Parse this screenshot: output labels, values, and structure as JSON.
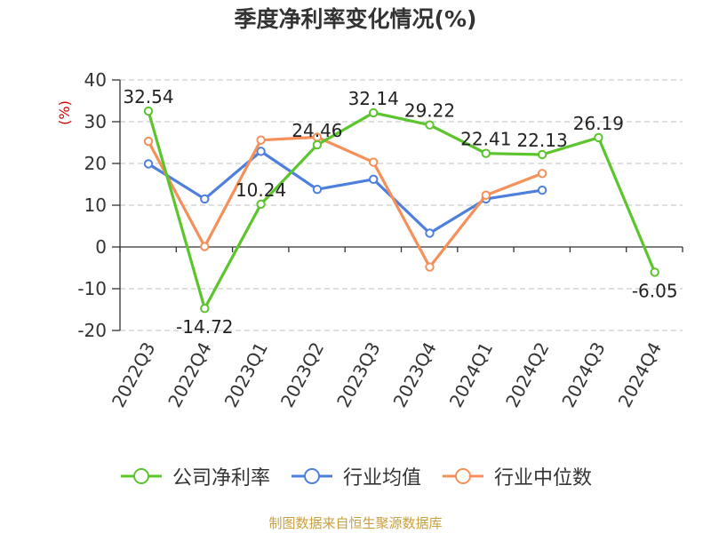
{
  "chart_data": {
    "type": "line",
    "title": "季度净利率变化情况(%)",
    "ylabel": "(%)",
    "categories": [
      "2022Q3",
      "2022Q4",
      "2023Q1",
      "2023Q2",
      "2023Q3",
      "2023Q4",
      "2024Q1",
      "2024Q2",
      "2024Q3",
      "2024Q4"
    ],
    "ylim": [
      -20,
      40
    ],
    "yticks": [
      -20,
      -10,
      0,
      10,
      20,
      30,
      40
    ],
    "grid": true,
    "legend_position": "bottom",
    "series": [
      {
        "name": "公司净利率",
        "color": "#5cc52e",
        "labels": true,
        "values": [
          32.54,
          -14.72,
          10.24,
          24.46,
          32.14,
          29.22,
          22.41,
          22.13,
          26.19,
          -6.05
        ]
      },
      {
        "name": "行业均值",
        "color": "#4f7fdc",
        "labels": false,
        "values": [
          19.9,
          11.5,
          22.9,
          13.8,
          16.2,
          3.3,
          11.5,
          13.6,
          null,
          null
        ]
      },
      {
        "name": "行业中位数",
        "color": "#f5905a",
        "labels": false,
        "values": [
          25.3,
          0.1,
          25.6,
          26.3,
          20.3,
          -4.8,
          12.4,
          17.6,
          null,
          null
        ]
      }
    ],
    "source": "制图数据来自恒生聚源数据库"
  }
}
